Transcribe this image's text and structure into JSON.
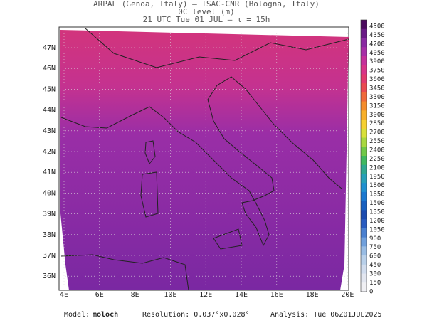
{
  "header": {
    "line1": "ARPAL (Genoa, Italy)  –  ISAC-CNR (Bologna, Italy)",
    "line2": "0C level (m)",
    "line3": "21 UTC Tue 01 JUL  –  τ = 15h"
  },
  "latitudes": [
    "47N",
    "46N",
    "45N",
    "44N",
    "43N",
    "42N",
    "41N",
    "40N",
    "39N",
    "38N",
    "37N",
    "36N"
  ],
  "longitudes": [
    "4E",
    "6E",
    "8E",
    "10E",
    "12E",
    "14E",
    "16E",
    "18E",
    "20E"
  ],
  "colorbar": {
    "levels": [
      4500,
      4350,
      4200,
      4050,
      3900,
      3750,
      3600,
      3450,
      3300,
      3150,
      3000,
      2850,
      2700,
      2550,
      2400,
      2250,
      2100,
      1950,
      1800,
      1650,
      1500,
      1350,
      1200,
      1050,
      900,
      750,
      600,
      450,
      300,
      150,
      0
    ],
    "colors": [
      "#4b0a5e",
      "#6a1a86",
      "#8a2aa2",
      "#a72fa6",
      "#c5309a",
      "#d83488",
      "#e23a6e",
      "#ea4a50",
      "#f06a3a",
      "#f58c2c",
      "#f8b02a",
      "#f5d032",
      "#d8e03a",
      "#a8d840",
      "#70c848",
      "#40b860",
      "#30a890",
      "#28a0b8",
      "#2090d0",
      "#1a78d0",
      "#1860c0",
      "#1c4cb0",
      "#2a5cc0",
      "#4a80d0",
      "#70a0dc",
      "#98bce4",
      "#b8d0ea",
      "#d0dcee",
      "#e2e6f0",
      "#f0f0f4"
    ]
  },
  "footer": {
    "model_label": "Model:",
    "model": "moloch",
    "resolution": "Resolution: 0.037°x0.028°",
    "analysis": "Analysis: Tue 06Z01JUL2025"
  }
}
